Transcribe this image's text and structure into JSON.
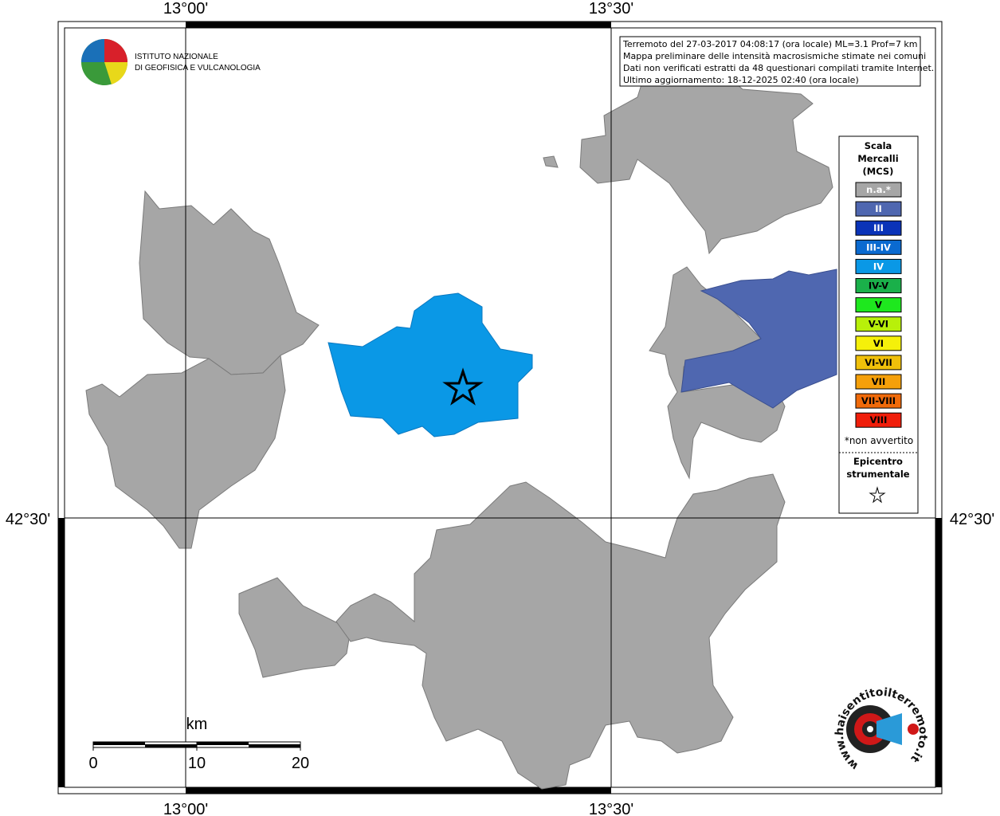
{
  "axis_labels": {
    "top": [
      "13°00'",
      "13°30'"
    ],
    "bottom": [
      "13°00'",
      "13°30'"
    ],
    "left": "42°30'",
    "right": "42°30'"
  },
  "institute": {
    "line1": "ISTITUTO NAZIONALE",
    "line2": "DI GEOFISICA E VULCANOLOGIA"
  },
  "info": [
    "Terremoto del 27-03-2017 04:08:17 (ora locale) ML=3.1 Prof=7 km",
    "Mappa preliminare delle intensità macrosismiche stimate nei comuni",
    "Dati non verificati estratti da 48 questionari compilati tramite Internet.",
    "Ultimo aggiornamento: 18-12-2025 02:40 (ora locale)"
  ],
  "legend": {
    "title": [
      "Scala",
      "Mercalli",
      "(MCS)"
    ],
    "items": [
      {
        "label": "n.a.*",
        "color": "#a6a6a6"
      },
      {
        "label": "II",
        "color": "#4f67b0"
      },
      {
        "label": "III",
        "color": "#0a33b8"
      },
      {
        "label": "III-IV",
        "color": "#0a6ad0"
      },
      {
        "label": "IV",
        "color": "#0a98e6"
      },
      {
        "label": "IV-V",
        "color": "#1ab04a"
      },
      {
        "label": "V",
        "color": "#1ee81e"
      },
      {
        "label": "V-VI",
        "color": "#b8f00a"
      },
      {
        "label": "VI",
        "color": "#f5f00a"
      },
      {
        "label": "VI-VII",
        "color": "#f0c00a"
      },
      {
        "label": "VII",
        "color": "#f5a00a"
      },
      {
        "label": "VII-VIII",
        "color": "#f06a0a"
      },
      {
        "label": "VIII",
        "color": "#f01e0a"
      }
    ],
    "note": "*non avvertito",
    "epicentre": [
      "Epicentro",
      "strumentale"
    ]
  },
  "scale_bar": {
    "unit": "km",
    "ticks": [
      0,
      10,
      20
    ]
  },
  "badge": "www.haisentitoilterremoto.it"
}
